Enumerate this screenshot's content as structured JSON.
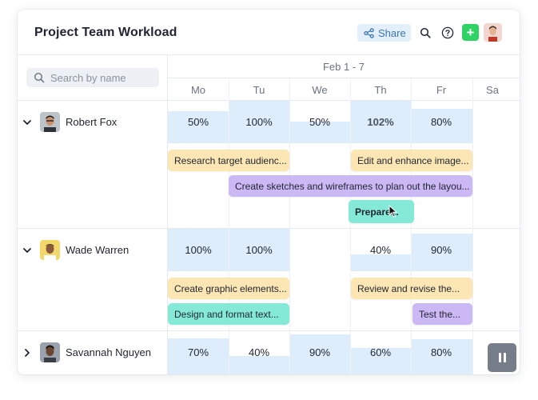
{
  "header": {
    "title": "Project Team Workload",
    "share_label": "Share",
    "icons": [
      "share-icon",
      "search-icon",
      "help-icon",
      "plus-icon"
    ],
    "add_label": "+"
  },
  "search": {
    "placeholder": "Search by name",
    "value": ""
  },
  "timeline": {
    "week_label": "Feb 1 - 7",
    "days": [
      "Mo",
      "Tu",
      "We",
      "Th",
      "Fr",
      "Sa"
    ]
  },
  "people": [
    {
      "name": "Robert Fox",
      "expanded": true,
      "workload": [
        "50%",
        "100%",
        "50%",
        "102%",
        "80%"
      ],
      "tasks": [
        {
          "label": "Research target audienc...",
          "color": "yellow"
        },
        {
          "label": "Edit and enhance image...",
          "color": "yellow"
        },
        {
          "label": "Create sketches and wireframes to plan out the layou...",
          "color": "purple"
        },
        {
          "label": "Prepare...",
          "color": "teal"
        }
      ]
    },
    {
      "name": "Wade Warren",
      "expanded": true,
      "workload": [
        "100%",
        "100%",
        "",
        "40%",
        "90%"
      ],
      "tasks": [
        {
          "label": "Create graphic elements...",
          "color": "yellow"
        },
        {
          "label": "Review and revise the...",
          "color": "yellow"
        },
        {
          "label": "Design and format text...",
          "color": "teal"
        },
        {
          "label": "Test the...",
          "color": "purple"
        }
      ]
    },
    {
      "name": "Savannah Nguyen",
      "expanded": false,
      "workload": [
        "70%",
        "40%",
        "90%",
        "60%",
        "80%"
      ],
      "tasks": []
    }
  ],
  "colors": {
    "workload_fill": "#deedfb",
    "task_yellow": "#fbe6b4",
    "task_purple": "#ccb8f4",
    "task_teal": "#84ead7",
    "share_bg": "#e3effb",
    "plus_bg": "#2fd364",
    "pause_bg": "#767e89"
  }
}
